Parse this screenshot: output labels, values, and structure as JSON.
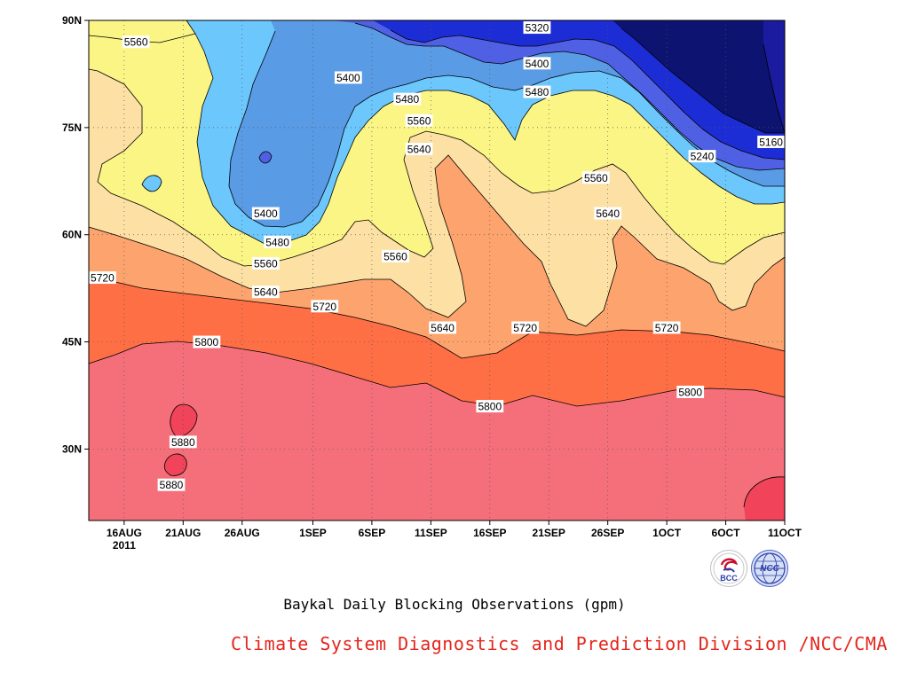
{
  "chart_data": {
    "type": "heatmap",
    "subtype": "filled-contour",
    "title": "Baykal Daily Blocking Observations (gpm)",
    "credit": "Climate System Diagnostics and Prediction Division /NCC/CMA",
    "x_tick_labels": [
      "16AUG",
      "21AUG",
      "26AUG",
      "1SEP",
      "6SEP",
      "11SEP",
      "16SEP",
      "21SEP",
      "26SEP",
      "1OCT",
      "6OCT",
      "11OCT"
    ],
    "x_tick_sublabel": "2011",
    "x_range": [
      "2011-08-13",
      "2011-10-11"
    ],
    "y_tick_labels": [
      "30N",
      "45N",
      "60N",
      "75N",
      "90N"
    ],
    "y_ticks": [
      30,
      45,
      60,
      75,
      90
    ],
    "y_range": [
      20,
      90
    ],
    "grid": true,
    "contour_levels": [
      5160,
      5240,
      5320,
      5400,
      5480,
      5560,
      5640,
      5720,
      5800,
      5880
    ],
    "fill_colors": {
      "below_5160": "#1a1b9f",
      "5160_5240": "#0c1370",
      "5240_5320": "#1d2dd5",
      "5320_5400": "#5060e4",
      "5400_5480": "#5a9be6",
      "5480_5560": "#6cc7fc",
      "5560_5640": "#fbf585",
      "5640_5720": "#fde0a4",
      "5720_5800": "#fda36d",
      "5800_5880": "#ff6f45",
      "above_5880": "#f46f7a",
      "max": "#f1435a"
    },
    "contour_labels": [
      {
        "level": "5560",
        "lat": 87,
        "date": "2011-08-17"
      },
      {
        "level": "5320",
        "lat": 89,
        "date": "2011-09-20"
      },
      {
        "level": "5400",
        "lat": 84,
        "date": "2011-09-20"
      },
      {
        "level": "5400",
        "lat": 82,
        "date": "2011-09-04"
      },
      {
        "level": "5480",
        "lat": 80,
        "date": "2011-09-20"
      },
      {
        "level": "5480",
        "lat": 79,
        "date": "2011-09-09"
      },
      {
        "level": "5560",
        "lat": 76,
        "date": "2011-09-10"
      },
      {
        "level": "5640",
        "lat": 72,
        "date": "2011-09-10"
      },
      {
        "level": "5160",
        "lat": 73,
        "date": "2011-10-11"
      },
      {
        "level": "5240",
        "lat": 71,
        "date": "2011-10-04"
      },
      {
        "level": "5560",
        "lat": 68,
        "date": "2011-09-25"
      },
      {
        "level": "5640",
        "lat": 63,
        "date": "2011-09-26"
      },
      {
        "level": "5400",
        "lat": 63,
        "date": "2011-08-28"
      },
      {
        "level": "5480",
        "lat": 59,
        "date": "2011-08-29"
      },
      {
        "level": "5560",
        "lat": 57,
        "date": "2011-09-08"
      },
      {
        "level": "5560",
        "lat": 56,
        "date": "2011-08-28"
      },
      {
        "level": "5720",
        "lat": 54,
        "date": "2011-08-13"
      },
      {
        "level": "5640",
        "lat": 52,
        "date": "2011-08-28"
      },
      {
        "level": "5720",
        "lat": 50,
        "date": "2011-09-02"
      },
      {
        "level": "5640",
        "lat": 47,
        "date": "2011-09-12"
      },
      {
        "level": "5720",
        "lat": 47,
        "date": "2011-09-19"
      },
      {
        "level": "5720",
        "lat": 47,
        "date": "2011-10-01"
      },
      {
        "level": "5800",
        "lat": 45,
        "date": "2011-08-23"
      },
      {
        "level": "5800",
        "lat": 38,
        "date": "2011-10-03"
      },
      {
        "level": "5800",
        "lat": 36,
        "date": "2011-09-16"
      },
      {
        "level": "5880",
        "lat": 31,
        "date": "2011-08-21"
      },
      {
        "level": "5880",
        "lat": 25,
        "date": "2011-08-20"
      }
    ]
  },
  "logos": {
    "bcc": {
      "text": "BCC",
      "color": "#c8102e"
    },
    "ncc": {
      "text": "NCC",
      "color": "#2b3fa8"
    }
  }
}
